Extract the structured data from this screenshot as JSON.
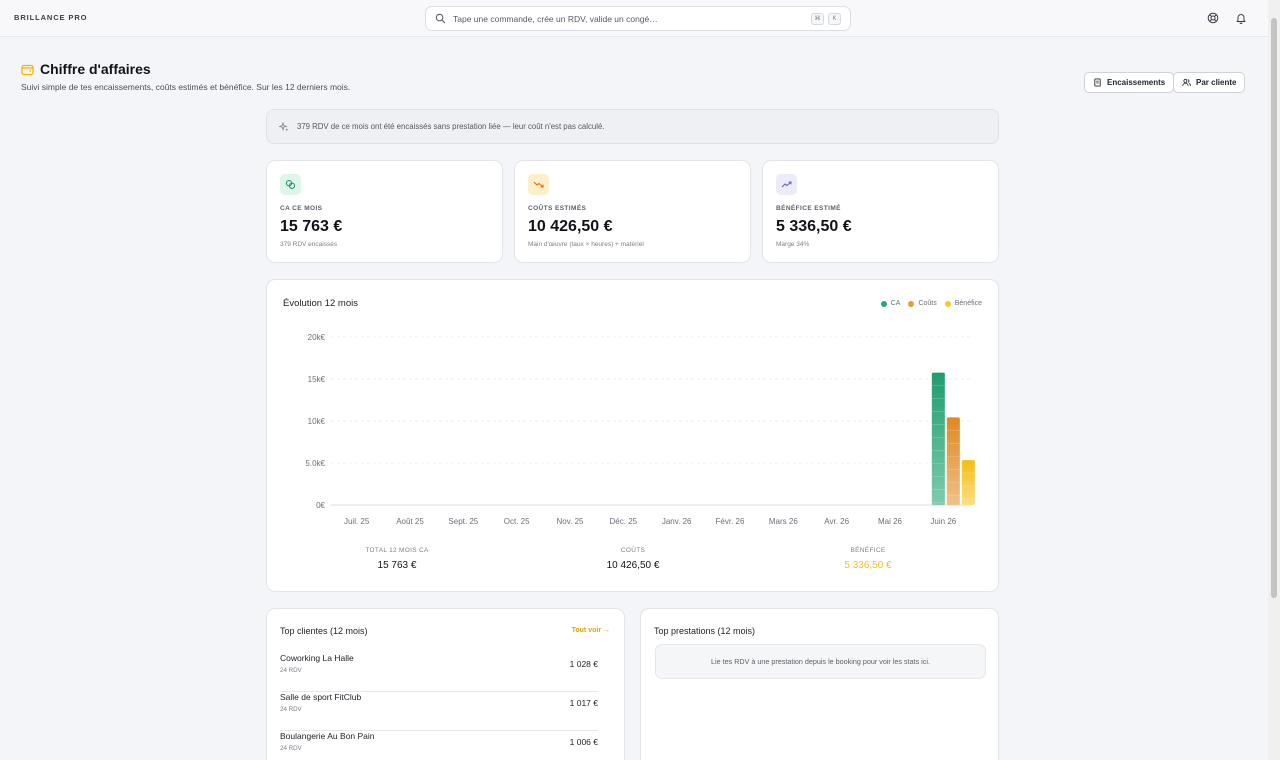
{
  "app": {
    "brand": "BRILLANCE PRO",
    "search_placeholder": "Tape une commande, crée un RDV, valide un congé…",
    "shortcut_keys": [
      "⌘",
      "K"
    ]
  },
  "header": {
    "title": "Chiffre d'affaires",
    "subtitle": "Suivi simple de tes encaissements, coûts estimés et bénéfice. Sur les 12 derniers mois.",
    "buttons": {
      "encaissements": "Encaissements",
      "par_cliente": "Par cliente"
    }
  },
  "notice": {
    "text": "379 RDV de ce mois ont été encaissés sans prestation liée — leur coût n'est pas calculé."
  },
  "kpis": [
    {
      "label": "CA CE MOIS",
      "value": "15 763 €",
      "sub": "379 RDV encaissés",
      "icon": "money-icon",
      "icon_color": "#1a9a6c",
      "icon_bg": "#dff5ea"
    },
    {
      "label": "COÛTS ESTIMÉS",
      "value": "10 426,50 €",
      "sub": "Main d'œuvre (taux × heures) + matériel",
      "icon": "trending-down-icon",
      "icon_color": "#e36a12",
      "icon_bg": "#fdf0c8"
    },
    {
      "label": "BÉNÉFICE ESTIMÉ",
      "value": "5 336,50 €",
      "sub": "Marge 34%",
      "icon": "trending-up-icon",
      "icon_color": "#6f5fc4",
      "icon_bg": "#ecebf8"
    }
  ],
  "chart_data": {
    "type": "bar",
    "title": "Évolution 12 mois",
    "categories": [
      "Juil. 25",
      "Août 25",
      "Sept. 25",
      "Oct. 25",
      "Nov. 25",
      "Déc. 25",
      "Janv. 26",
      "Févr. 26",
      "Mars 26",
      "Avr. 26",
      "Mai 26",
      "Juin 26"
    ],
    "series": [
      {
        "name": "CA",
        "color": "#2aa57a",
        "values": [
          0,
          0,
          0,
          0,
          0,
          0,
          0,
          0,
          0,
          0,
          0,
          15763
        ]
      },
      {
        "name": "Coûts",
        "color": "#e69a3a",
        "values": [
          0,
          0,
          0,
          0,
          0,
          0,
          0,
          0,
          0,
          0,
          0,
          10426.5
        ]
      },
      {
        "name": "Bénéfice",
        "color": "#f7c52d",
        "values": [
          0,
          0,
          0,
          0,
          0,
          0,
          0,
          0,
          0,
          0,
          0,
          5336.5
        ]
      }
    ],
    "y_ticks": [
      "0€",
      "5.0k€",
      "10k€",
      "15k€",
      "20k€"
    ],
    "y_tick_values": [
      0,
      5000,
      10000,
      15000,
      20000
    ],
    "ylim": [
      0,
      20000
    ],
    "grid": true,
    "legend": "top-right",
    "totals": [
      {
        "label": "TOTAL 12 MOIS CA",
        "value": "15 763 €"
      },
      {
        "label": "COÛTS",
        "value": "10 426,50 €"
      },
      {
        "label": "BÉNÉFICE",
        "value": "5 336,50 €"
      }
    ]
  },
  "top_clients": {
    "title": "Top clientes (12 mois)",
    "see_all": "Tout voir",
    "items": [
      {
        "name": "Coworking La Halle",
        "rdv": "24 RDV",
        "amount": "1 028 €"
      },
      {
        "name": "Salle de sport FitClub",
        "rdv": "24 RDV",
        "amount": "1 017 €"
      },
      {
        "name": "Boulangerie Au Bon Pain",
        "rdv": "24 RDV",
        "amount": "1 006 €"
      }
    ]
  },
  "top_prestations": {
    "title": "Top prestations (12 mois)",
    "empty": "Lie tes RDV à une prestation depuis le booking pour voir les stats ici."
  }
}
